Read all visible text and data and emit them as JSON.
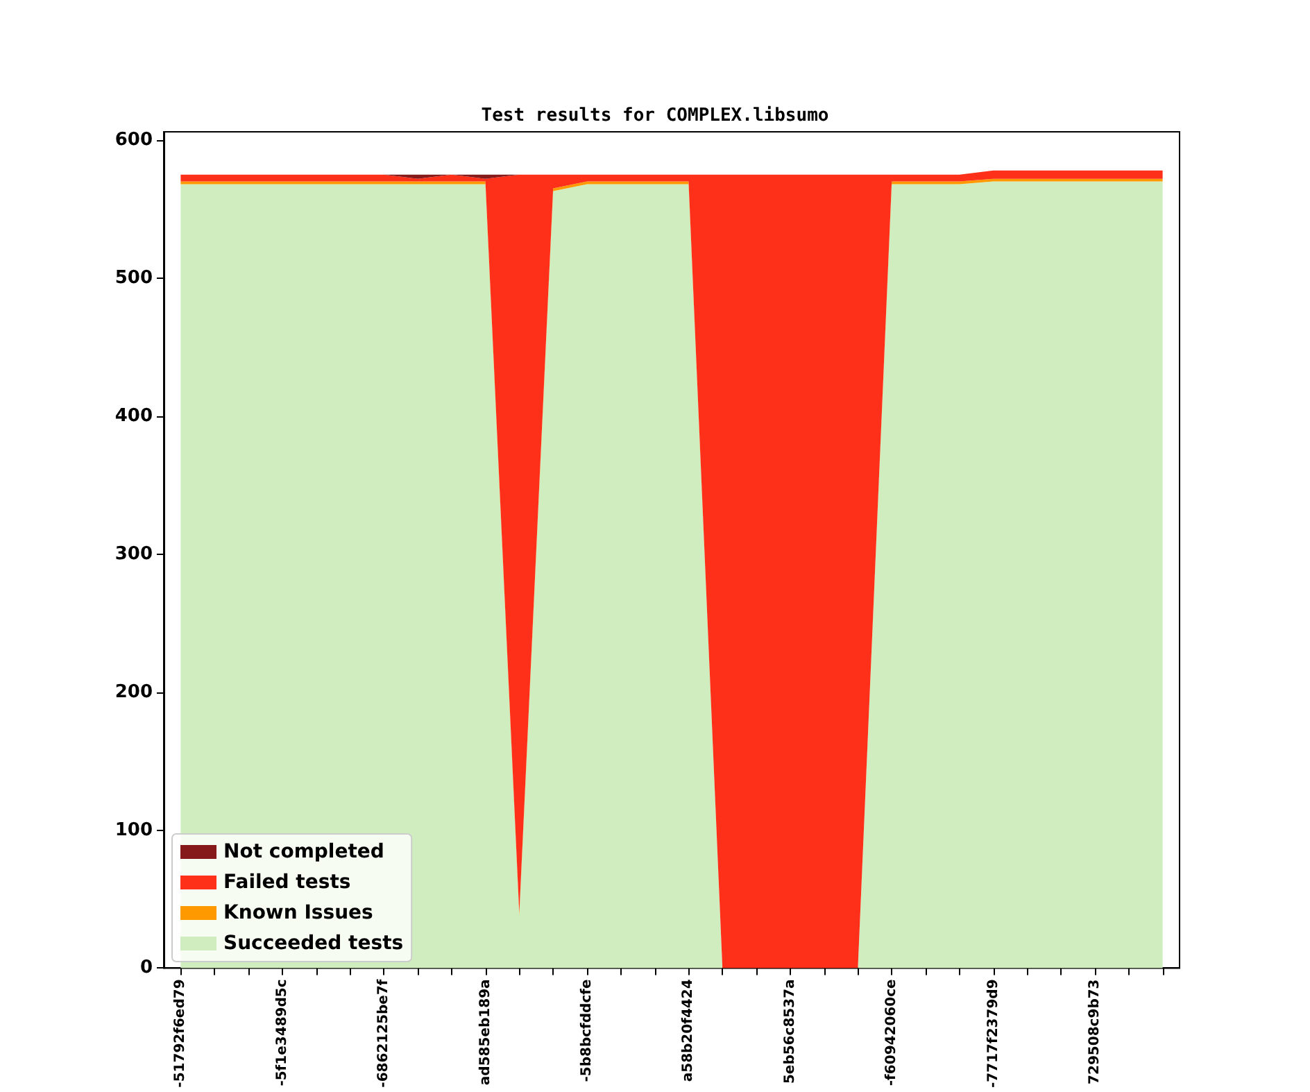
{
  "chart_data": {
    "type": "area",
    "stacked": true,
    "title": "Test results for COMPLEX.libsumo",
    "categories": [
      "-51792f6ed79",
      null,
      null,
      "-5f1e3489d5c",
      null,
      null,
      "-6862125be7f",
      null,
      null,
      "ad585eb189a",
      null,
      null,
      "-5b8bcfddcfe",
      null,
      null,
      "a58b20f4424",
      null,
      null,
      "5eb56c8537a",
      null,
      null,
      "-f60942060ce",
      null,
      null,
      "-7717f2379d9",
      null,
      null,
      "729508c9b73",
      null,
      null
    ],
    "series": [
      {
        "name": "Succeeded tests",
        "color": "#cfedbf",
        "values": [
          568,
          568,
          568,
          568,
          568,
          568,
          568,
          568,
          568,
          568,
          38,
          563,
          568,
          568,
          568,
          568,
          0,
          0,
          0,
          0,
          0,
          568,
          568,
          568,
          570,
          570,
          570,
          570,
          570,
          570
        ]
      },
      {
        "name": "Known Issues",
        "color": "#ff9900",
        "values": [
          2,
          2,
          2,
          2,
          2,
          2,
          2,
          2,
          2,
          2,
          2,
          2,
          2,
          2,
          2,
          2,
          0,
          0,
          0,
          0,
          0,
          2,
          2,
          2,
          2,
          2,
          2,
          2,
          2,
          2
        ]
      },
      {
        "name": "Failed tests",
        "color": "#ff3019",
        "values": [
          5,
          5,
          5,
          5,
          5,
          5,
          5,
          2,
          5,
          2,
          535,
          10,
          5,
          5,
          5,
          5,
          575,
          575,
          575,
          575,
          575,
          5,
          5,
          5,
          6,
          6,
          6,
          6,
          6,
          6
        ]
      },
      {
        "name": "Not completed",
        "color": "#861a1a",
        "values": [
          0,
          0,
          0,
          0,
          0,
          0,
          0,
          3,
          0,
          3,
          0,
          0,
          0,
          0,
          0,
          0,
          0,
          0,
          0,
          0,
          0,
          0,
          0,
          0,
          0,
          0,
          0,
          0,
          0,
          0
        ]
      }
    ],
    "ylim": [
      0,
      606
    ],
    "yticks": [
      0,
      100,
      200,
      300,
      400,
      500,
      600
    ],
    "grid": false,
    "legend": "bottom left"
  }
}
